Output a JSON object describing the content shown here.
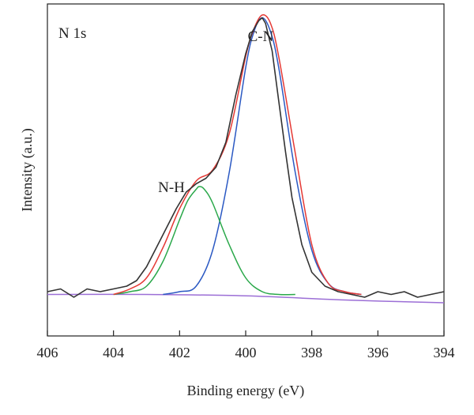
{
  "chart_data": {
    "type": "line",
    "panel_label": "N 1s",
    "xlabel": "Binding energy (eV)",
    "ylabel": "Intensity (a.u.)",
    "xlim": [
      406,
      394
    ],
    "x_reversed": true,
    "ylim": [
      -0.15,
      1.05
    ],
    "xticks": [
      406,
      404,
      402,
      400,
      398,
      396,
      394
    ],
    "grid": false,
    "legend": "none",
    "baseline": 0.0,
    "peaks": [
      {
        "label": "C-N",
        "center": 399.5,
        "height": 1.0,
        "sigma": 0.78,
        "color": "#2b59c3"
      },
      {
        "label": "N-H",
        "center": 401.4,
        "height": 0.39,
        "sigma": 0.72,
        "color": "#2aa84a"
      }
    ],
    "series": [
      {
        "name": "",
        "role": "raw",
        "color": "#333333",
        "x": [
          406.0,
          405.6,
          405.2,
          404.8,
          404.4,
          404.0,
          403.6,
          403.3,
          403.0,
          402.7,
          402.4,
          402.1,
          401.8,
          401.5,
          401.2,
          400.9,
          400.6,
          400.3,
          400.0,
          399.8,
          399.6,
          399.5,
          399.4,
          399.2,
          399.0,
          398.8,
          398.6,
          398.3,
          398.0,
          397.6,
          397.2,
          396.8,
          396.4,
          396.0,
          395.6,
          395.2,
          394.8,
          394.4,
          394.0
        ],
        "y": [
          0.01,
          0.02,
          -0.01,
          0.02,
          0.01,
          0.02,
          0.03,
          0.05,
          0.1,
          0.17,
          0.24,
          0.31,
          0.37,
          0.4,
          0.42,
          0.46,
          0.55,
          0.72,
          0.87,
          0.95,
          0.99,
          1.0,
          0.98,
          0.88,
          0.7,
          0.52,
          0.35,
          0.18,
          0.08,
          0.03,
          0.01,
          0.0,
          -0.01,
          0.01,
          0.0,
          0.01,
          -0.01,
          0.0,
          0.01
        ]
      },
      {
        "name": "",
        "role": "envelope",
        "color": "#e53935",
        "x": [
          404.0,
          403.5,
          403.0,
          402.5,
          402.0,
          401.5,
          401.0,
          400.5,
          400.0,
          399.75,
          399.5,
          399.25,
          399.0,
          398.5,
          398.0,
          397.5,
          397.0,
          396.5
        ],
        "y": [
          0.0,
          0.02,
          0.06,
          0.17,
          0.31,
          0.41,
          0.45,
          0.58,
          0.86,
          0.96,
          1.01,
          0.98,
          0.86,
          0.51,
          0.18,
          0.04,
          0.01,
          0.0
        ]
      },
      {
        "name": "C-N",
        "role": "fit",
        "color": "#2b59c3",
        "x": [
          402.5,
          402.0,
          401.5,
          401.0,
          400.5,
          400.0,
          399.75,
          399.5,
          399.25,
          399.0,
          398.5,
          398.0,
          397.5,
          397.0,
          396.5
        ],
        "y": [
          0.0,
          0.01,
          0.03,
          0.16,
          0.44,
          0.82,
          0.95,
          1.0,
          0.95,
          0.82,
          0.44,
          0.16,
          0.04,
          0.01,
          0.0
        ]
      },
      {
        "name": "N-H",
        "role": "fit",
        "color": "#2aa84a",
        "x": [
          404.0,
          403.5,
          403.0,
          402.5,
          402.0,
          401.75,
          401.5,
          401.4,
          401.25,
          401.0,
          400.5,
          400.0,
          399.5,
          399.0,
          398.5
        ],
        "y": [
          0.0,
          0.01,
          0.03,
          0.12,
          0.27,
          0.34,
          0.38,
          0.39,
          0.38,
          0.33,
          0.18,
          0.06,
          0.01,
          0.0,
          0.0
        ]
      },
      {
        "name": "",
        "role": "background",
        "color": "#9c6fd6",
        "x": [
          406.0,
          403.0,
          400.0,
          397.0,
          394.0
        ],
        "y": [
          0.0,
          0.0,
          -0.005,
          -0.02,
          -0.03
        ]
      }
    ]
  }
}
